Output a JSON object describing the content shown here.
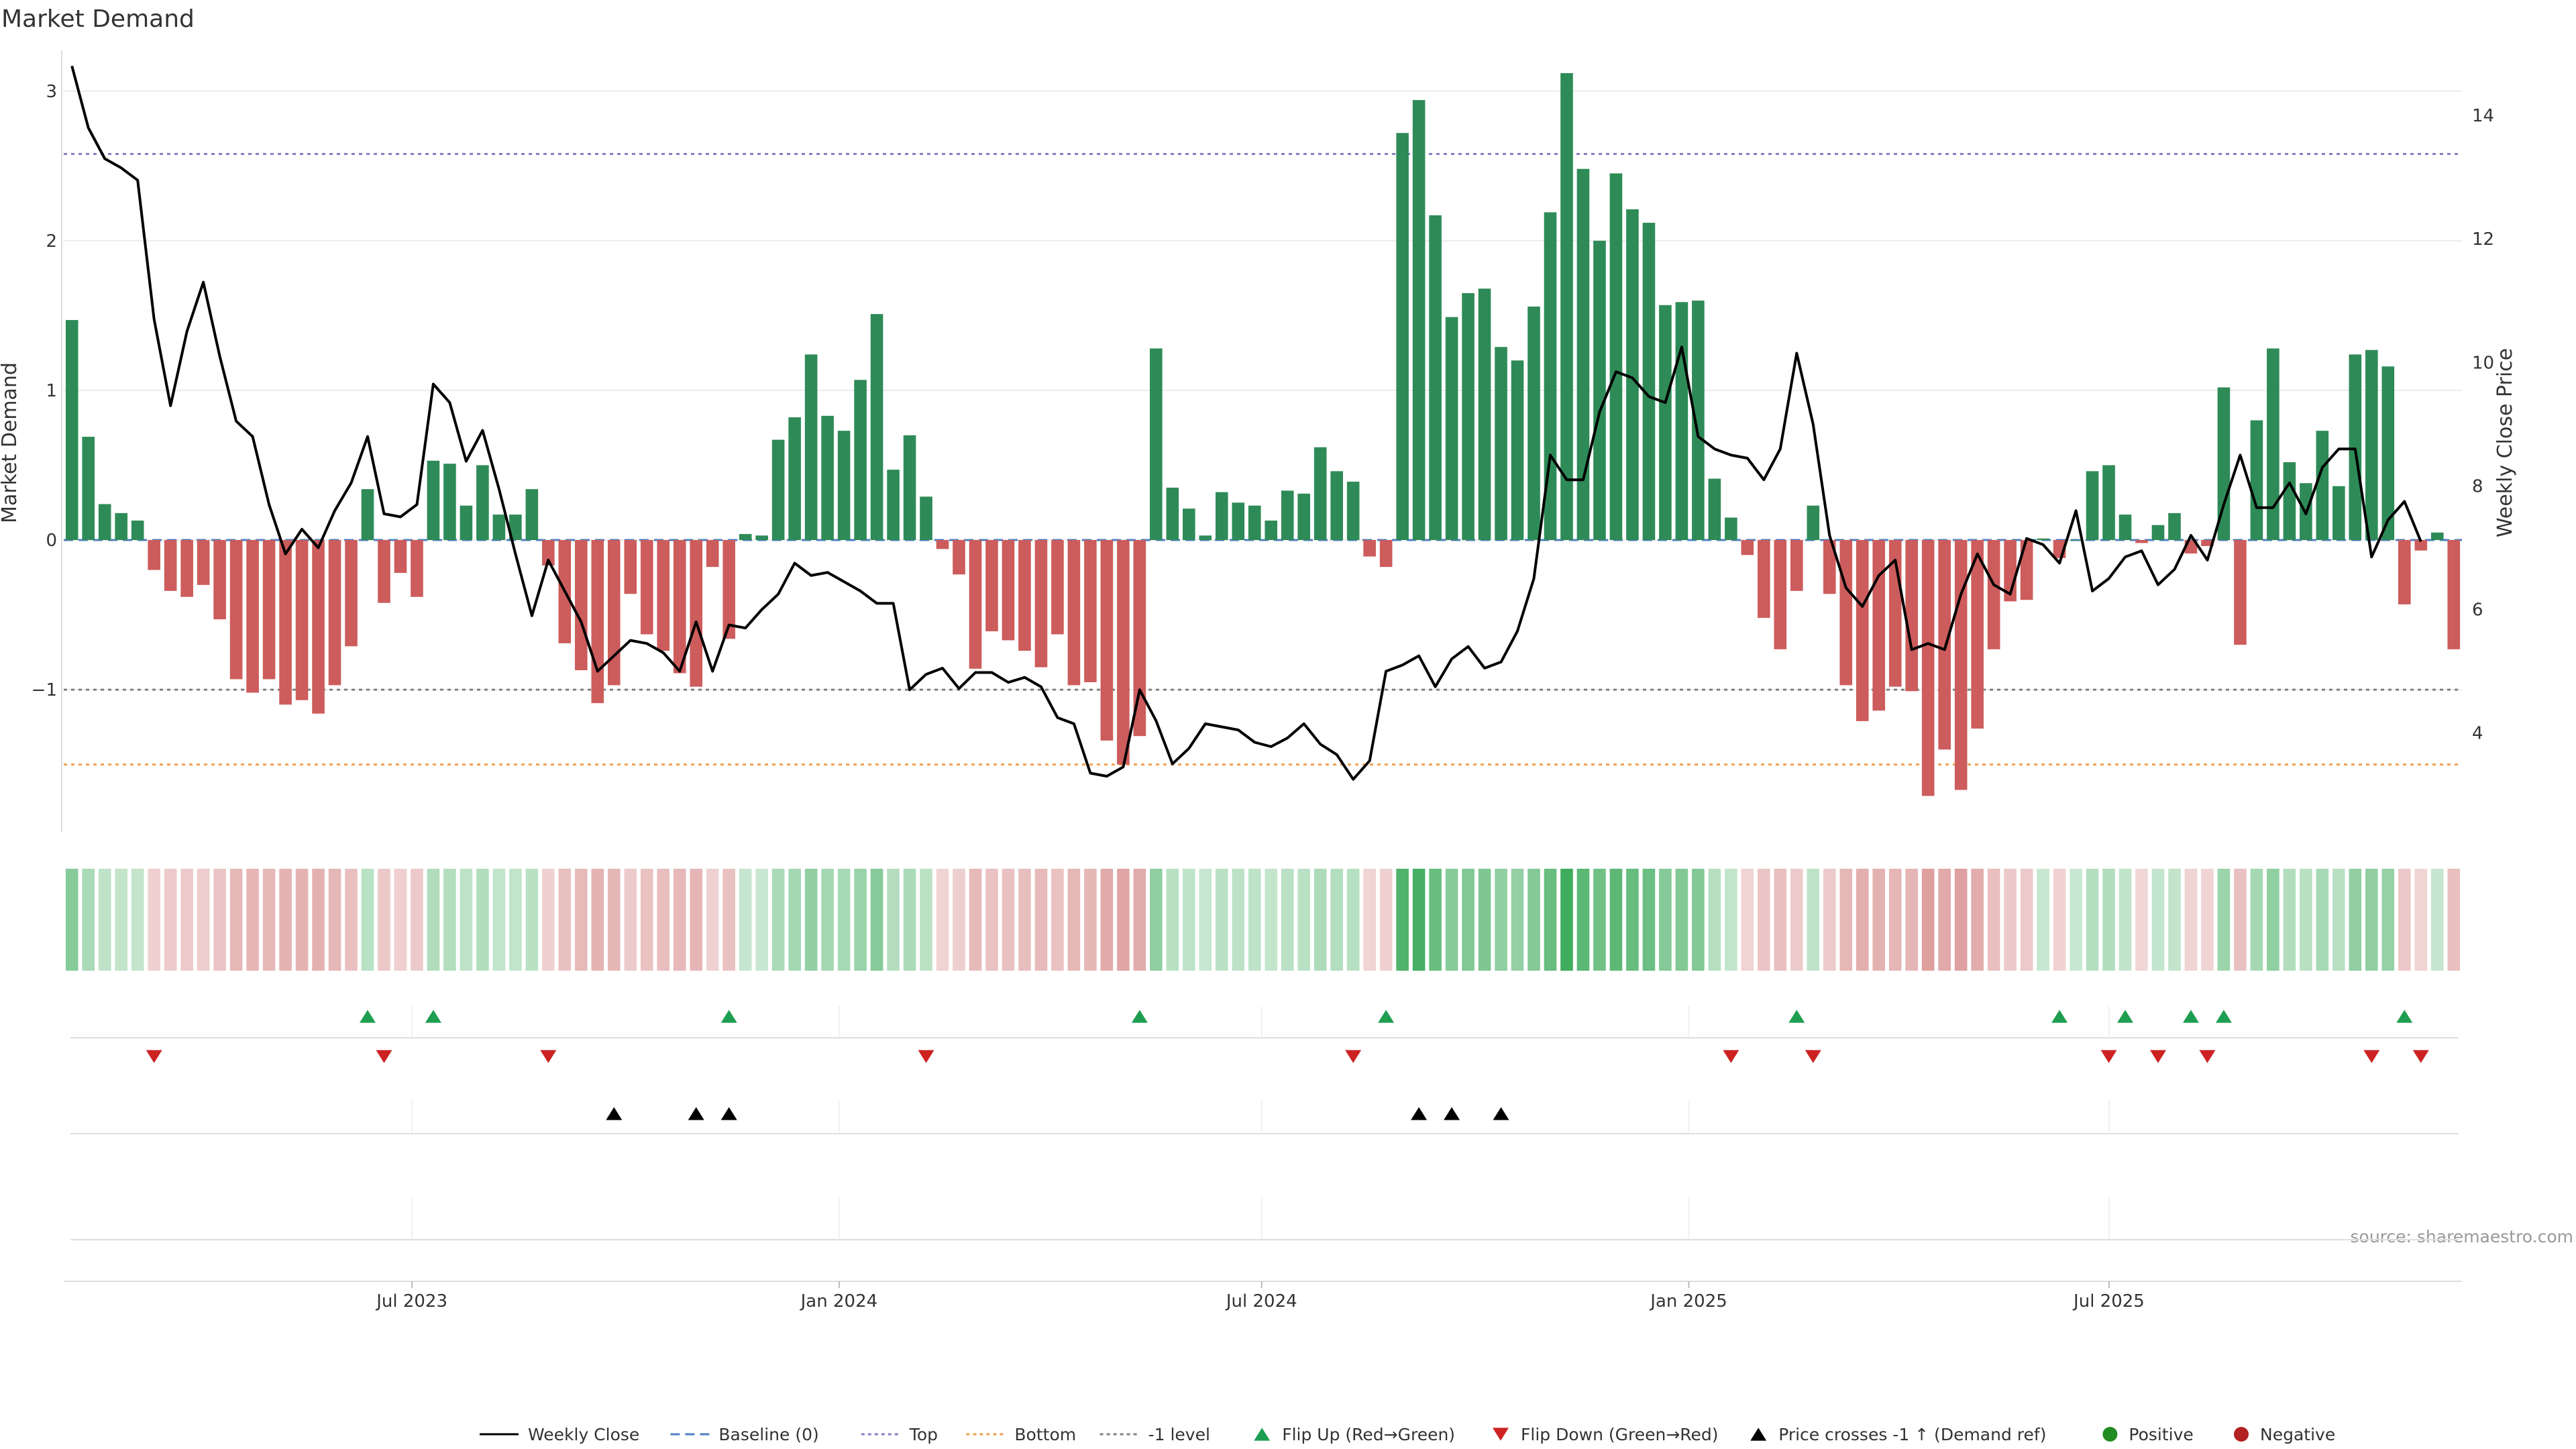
{
  "chart_data": {
    "type": "bar",
    "title": "Market Demand",
    "ylabel": "Market Demand",
    "y2label": "Weekly Close Price",
    "ylim": [
      -1.95,
      3.25
    ],
    "y_ticks": [
      3,
      2,
      1,
      0,
      -1
    ],
    "y2lim": [
      2.4,
      15.0
    ],
    "y2_ticks": [
      14,
      12,
      10,
      8,
      6,
      4
    ],
    "date_range": [
      "2023-02-01",
      "2025-11-30"
    ],
    "x_ticks": [
      {
        "date": "2023-07-01",
        "label": "Jul 2023"
      },
      {
        "date": "2024-01-01",
        "label": "Jan 2024"
      },
      {
        "date": "2024-07-01",
        "label": "Jul 2024"
      },
      {
        "date": "2025-01-01",
        "label": "Jan 2025"
      },
      {
        "date": "2025-07-01",
        "label": "Jul 2025"
      }
    ],
    "reference_lines": {
      "top": 2.58,
      "bottom": -1.5,
      "minus_one": -1.0,
      "baseline": 0
    },
    "colors": {
      "positive": "#2e8b57",
      "negative": "#cd5c5c",
      "close": "#000000",
      "top": "#8080c8",
      "bottom": "#f0a050",
      "minus_one": "#808080",
      "baseline": "#4e7fc0",
      "flip_up": "#1e9e50",
      "flip_down": "#cc2222",
      "cross": "#000000",
      "pos_dot": "#228b22",
      "neg_dot": "#b22222"
    },
    "bar_values": [
      1.47,
      0.69,
      0.24,
      0.18,
      0.13,
      -0.2,
      -0.34,
      -0.38,
      -0.3,
      -0.53,
      -0.93,
      -1.02,
      -0.93,
      -1.1,
      -1.07,
      -1.16,
      -0.97,
      -0.71,
      0.34,
      -0.42,
      -0.22,
      -0.38,
      0.53,
      0.51,
      0.23,
      0.5,
      0.17,
      0.17,
      0.34,
      -0.17,
      -0.69,
      -0.87,
      -1.09,
      -0.97,
      -0.36,
      -0.63,
      -0.74,
      -0.89,
      -0.98,
      -0.18,
      -0.66,
      0.04,
      0.03,
      0.67,
      0.82,
      1.24,
      0.83,
      0.73,
      1.07,
      1.51,
      0.47,
      0.7,
      0.29,
      -0.06,
      -0.23,
      -0.86,
      -0.61,
      -0.67,
      -0.74,
      -0.85,
      -0.63,
      -0.97,
      -0.95,
      -1.34,
      -1.5,
      -1.31,
      1.28,
      0.35,
      0.21,
      0.03,
      0.32,
      0.25,
      0.23,
      0.13,
      0.33,
      0.31,
      0.62,
      0.46,
      0.39,
      -0.11,
      -0.18,
      2.72,
      2.94,
      2.17,
      1.49,
      1.65,
      1.68,
      1.29,
      1.2,
      1.56,
      2.19,
      3.12,
      2.48,
      2.0,
      2.45,
      2.21,
      2.12,
      1.57,
      1.59,
      1.6,
      0.41,
      0.15,
      -0.1,
      -0.52,
      -0.73,
      -0.34,
      0.23,
      -0.36,
      -0.97,
      -1.21,
      -1.14,
      -0.98,
      -1.01,
      -1.71,
      -1.4,
      -1.67,
      -1.26,
      -0.73,
      -0.41,
      -0.4,
      0.01,
      -0.12,
      0.0,
      0.46,
      0.5,
      0.17,
      -0.02,
      0.1,
      0.18,
      -0.09,
      -0.04,
      1.02,
      -0.7,
      0.8,
      1.28,
      0.52,
      0.38,
      0.73,
      0.36,
      1.24,
      1.27,
      1.16,
      -0.43,
      -0.07,
      0.05,
      -0.73
    ],
    "close_values": [
      14.8,
      13.8,
      13.3,
      13.15,
      12.95,
      10.7,
      9.3,
      10.5,
      11.3,
      10.1,
      9.05,
      8.8,
      7.7,
      6.9,
      7.3,
      7.0,
      7.6,
      8.05,
      8.8,
      7.55,
      7.5,
      7.7,
      9.65,
      9.35,
      8.4,
      8.9,
      7.95,
      6.9,
      5.9,
      6.8,
      6.3,
      5.8,
      5.0,
      5.25,
      5.5,
      5.45,
      5.3,
      5.0,
      5.8,
      5.0,
      5.75,
      5.7,
      6.0,
      6.25,
      6.75,
      6.55,
      6.6,
      6.45,
      6.3,
      6.1,
      6.1,
      4.7,
      4.95,
      5.05,
      4.72,
      4.98,
      4.98,
      4.82,
      4.9,
      4.75,
      4.25,
      4.15,
      3.35,
      3.3,
      3.45,
      4.7,
      4.2,
      3.5,
      3.75,
      4.15,
      4.1,
      4.05,
      3.85,
      3.78,
      3.92,
      4.15,
      3.82,
      3.65,
      3.25,
      3.55,
      5.0,
      5.1,
      5.25,
      4.75,
      5.2,
      5.4,
      5.05,
      5.15,
      5.65,
      6.5,
      8.5,
      8.1,
      8.1,
      9.2,
      9.85,
      9.75,
      9.45,
      9.35,
      10.25,
      8.8,
      8.6,
      8.5,
      8.45,
      8.1,
      8.6,
      10.15,
      9.0,
      7.2,
      6.35,
      6.05,
      6.55,
      6.8,
      5.35,
      5.45,
      5.35,
      6.25,
      6.9,
      6.4,
      6.25,
      7.15,
      7.05,
      6.75,
      7.6,
      6.3,
      6.5,
      6.85,
      6.95,
      6.4,
      6.65,
      7.2,
      6.8,
      7.7,
      8.5,
      7.65,
      7.65,
      8.05,
      7.55,
      8.3,
      8.6,
      8.6,
      6.85,
      7.45,
      7.75,
      7.1
    ],
    "flip_up_idx": [
      18,
      22,
      40,
      65,
      80,
      105,
      121,
      125,
      129,
      131,
      142
    ],
    "flip_down_idx": [
      5,
      19,
      29,
      52,
      78,
      101,
      106,
      124,
      127,
      130,
      140,
      143
    ],
    "cross_idx": [
      33,
      38,
      40,
      82,
      84,
      87
    ],
    "legend": [
      {
        "label": "Weekly Close",
        "kind": "solid",
        "color": "#000000"
      },
      {
        "label": "Baseline (0)",
        "kind": "dash",
        "color": "#4e7fc0"
      },
      {
        "label": "Top",
        "kind": "dot",
        "color": "#8080c8"
      },
      {
        "label": "Bottom",
        "kind": "dot",
        "color": "#f0a050"
      },
      {
        "label": "-1 level",
        "kind": "dot",
        "color": "#808080"
      },
      {
        "label": "Flip Up (Red→Green)",
        "kind": "tri-up",
        "color": "#1e9e50"
      },
      {
        "label": "Flip Down (Green→Red)",
        "kind": "tri-down",
        "color": "#cc2222"
      },
      {
        "label": "Price crosses -1 ↑ (Demand ref)",
        "kind": "tri-up",
        "color": "#000000"
      },
      {
        "label": "Positive",
        "kind": "dot-marker",
        "color": "#228b22"
      },
      {
        "label": "Negative",
        "kind": "dot-marker",
        "color": "#b22222"
      }
    ],
    "source": "source: sharemaestro.com"
  }
}
